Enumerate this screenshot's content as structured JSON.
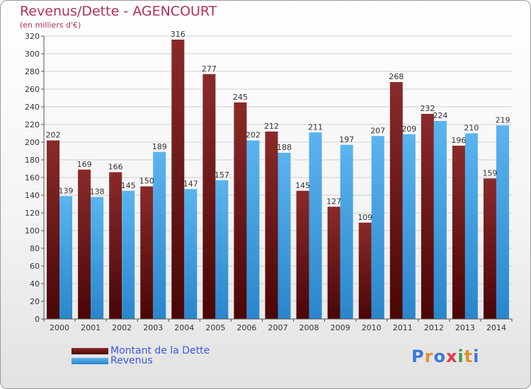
{
  "chart_data": {
    "type": "bar",
    "title": "Revenus/Dette - AGENCOURT",
    "subtitle": "(en milliers d'€)",
    "categories": [
      "2000",
      "2001",
      "2002",
      "2003",
      "2004",
      "2005",
      "2006",
      "2007",
      "2008",
      "2009",
      "2010",
      "2011",
      "2012",
      "2013",
      "2014"
    ],
    "series": [
      {
        "name": "Montant de la Dette",
        "color": "#7a1a1a",
        "values": [
          202,
          169,
          166,
          150,
          316,
          277,
          245,
          212,
          145,
          127,
          109,
          268,
          232,
          196,
          159
        ]
      },
      {
        "name": "Revenus",
        "color": "#4aa8e8",
        "values": [
          139,
          138,
          145,
          189,
          147,
          157,
          202,
          188,
          211,
          197,
          207,
          209,
          224,
          210,
          219
        ]
      }
    ],
    "ylim": [
      0,
      320
    ],
    "yticks": [
      0,
      20,
      40,
      60,
      80,
      100,
      120,
      140,
      160,
      180,
      200,
      220,
      240,
      260,
      280,
      300,
      320
    ],
    "grid": true,
    "legend_placement": "bottom-left"
  },
  "logo": {
    "text": "Proxiti",
    "letters": [
      {
        "ch": "P",
        "color": "#3a78d8"
      },
      {
        "ch": "r",
        "color": "#e0902a"
      },
      {
        "ch": "o",
        "color": "#3a78d8"
      },
      {
        "ch": "x",
        "color": "#e03a4a"
      },
      {
        "ch": "i",
        "color": "#3aa04a"
      },
      {
        "ch": "t",
        "color": "#e0902a"
      },
      {
        "ch": "i",
        "color": "#3a78d8"
      }
    ]
  }
}
